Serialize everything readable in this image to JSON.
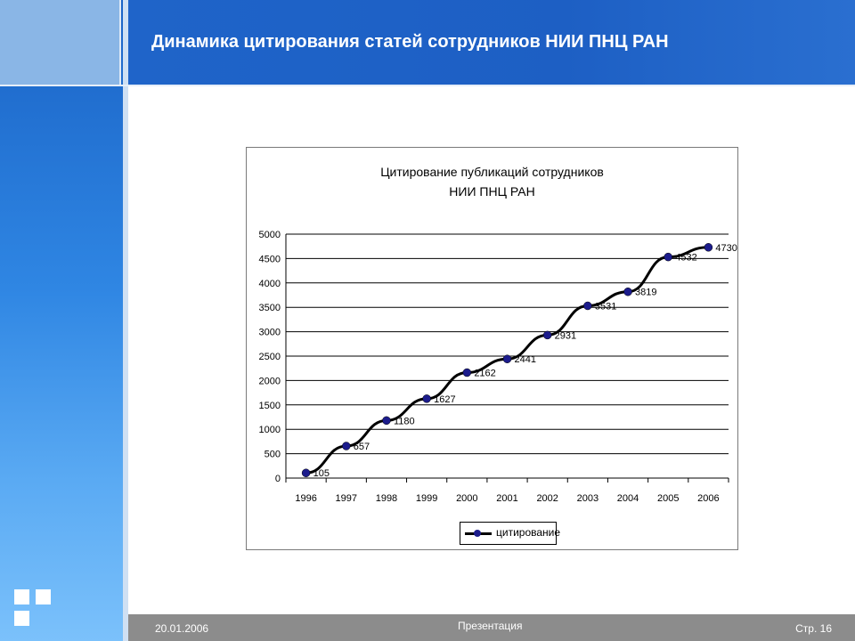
{
  "slide": {
    "title": "Динамика цитирования статей сотрудников НИИ ПНЦ РАН",
    "footer_date": "20.01.2006",
    "footer_center": "Презентация",
    "footer_page": "Стр. 16"
  },
  "colors": {
    "header_blue": "#1f64c9",
    "sidebar_blue": "#2f86e3",
    "footer_gray": "#8c8c8c",
    "line": "#000000",
    "marker": "#1c1c8c"
  },
  "chart_data": {
    "type": "line",
    "title_line1": "Цитирование публикаций сотрудников",
    "title_line2": "НИИ ПНЦ РАН",
    "x": [
      "1996",
      "1997",
      "1998",
      "1999",
      "2000",
      "2001",
      "2002",
      "2003",
      "2004",
      "2005",
      "2006"
    ],
    "series": [
      {
        "name": "цитирование",
        "values": [
          105,
          657,
          1180,
          1627,
          2162,
          2441,
          2931,
          3531,
          3819,
          4532,
          4730
        ]
      }
    ],
    "ylim": [
      0,
      5000
    ],
    "yticks": [
      0,
      500,
      1000,
      1500,
      2000,
      2500,
      3000,
      3500,
      4000,
      4500,
      5000
    ],
    "grid": "horizontal",
    "legend_position": "bottom",
    "xlabel": "",
    "ylabel": ""
  }
}
